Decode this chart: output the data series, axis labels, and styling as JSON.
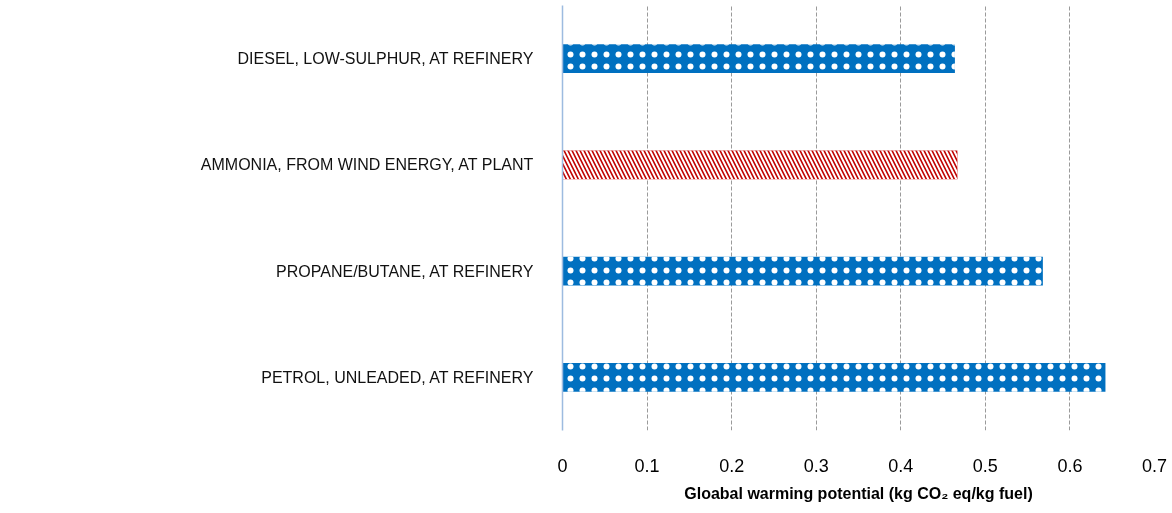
{
  "chart_data": {
    "type": "bar",
    "orientation": "horizontal",
    "categories": [
      "DIESEL, LOW-SULPHUR, AT REFINERY",
      "AMMONIA, FROM WIND ENERGY, AT PLANT",
      "PROPANE/BUTANE, AT REFINERY",
      "PETROL, UNLEADED, AT REFINERY"
    ],
    "values": [
      0.464,
      0.467,
      0.568,
      0.642
    ],
    "colors": [
      "#0070c0",
      "#c00000",
      "#0070c0",
      "#0070c0"
    ],
    "xlabel": "Gloabal warming potential (kg CO₂ eq/kg fuel)",
    "xlim": [
      0,
      0.7
    ],
    "xticks": [
      0,
      0.1,
      0.2,
      0.3,
      0.4,
      0.5,
      0.6,
      0.7
    ],
    "grid": "x"
  }
}
